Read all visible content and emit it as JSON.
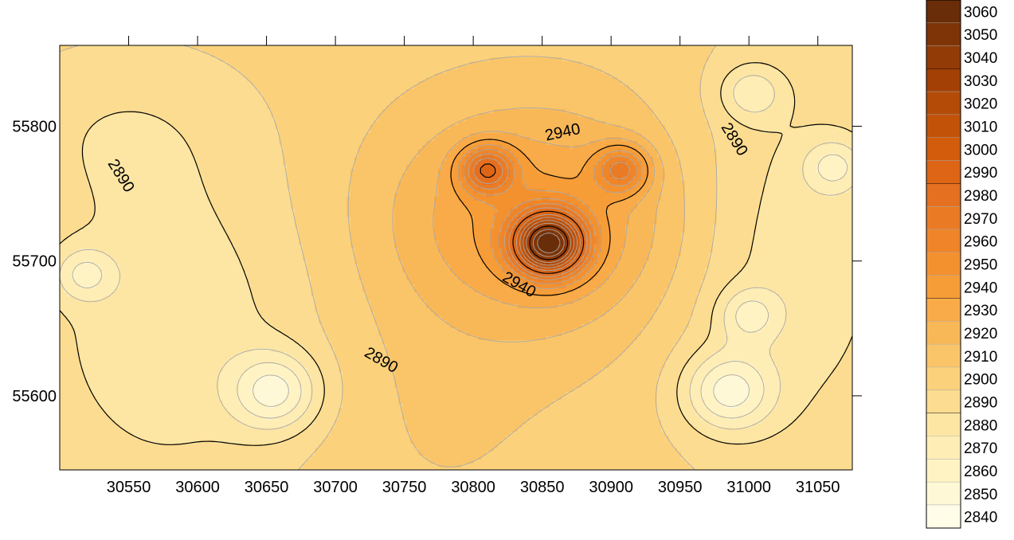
{
  "chart_data": {
    "type": "contour",
    "title": "",
    "xlabel": "",
    "ylabel": "",
    "xlim": [
      30500,
      31075
    ],
    "ylim": [
      55545,
      55860
    ],
    "x_ticks": [
      30550,
      30600,
      30650,
      30700,
      30750,
      30800,
      30850,
      30900,
      30950,
      31000,
      31050
    ],
    "y_ticks": [
      55600,
      55700,
      55800
    ],
    "grid": false,
    "contour_interval": 10,
    "highlighted_contours": [
      2890,
      2940,
      2990,
      3040
    ],
    "contour_labels": [
      {
        "value": 2940,
        "x": 30865,
        "y": 55795,
        "text": "2940"
      },
      {
        "value": 2940,
        "x": 30833,
        "y": 55682,
        "text": "2940"
      },
      {
        "value": 2890,
        "x": 30544,
        "y": 55763,
        "text": "2890"
      },
      {
        "value": 2890,
        "x": 30989,
        "y": 55790,
        "text": "2890"
      },
      {
        "value": 2890,
        "x": 30733,
        "y": 55626,
        "text": "2890"
      }
    ],
    "features": [
      {
        "kind": "peak",
        "x": 30855,
        "y": 55713,
        "value": 3060
      },
      {
        "kind": "peak",
        "x": 30810,
        "y": 55768,
        "value": 2990
      },
      {
        "kind": "peak",
        "x": 30908,
        "y": 55768,
        "value": 2980
      },
      {
        "kind": "depression",
        "x": 30656,
        "y": 55603,
        "value": 2845
      },
      {
        "kind": "depression",
        "x": 30985,
        "y": 55603,
        "value": 2845
      },
      {
        "kind": "depression",
        "x": 30518,
        "y": 55690,
        "value": 2860
      },
      {
        "kind": "depression",
        "x": 31062,
        "y": 55770,
        "value": 2860
      },
      {
        "kind": "depression",
        "x": 31002,
        "y": 55825,
        "value": 2860
      },
      {
        "kind": "depression",
        "x": 31000,
        "y": 55660,
        "value": 2860
      }
    ],
    "legend": {
      "position": "right",
      "levels": [
        3060,
        3050,
        3040,
        3030,
        3020,
        3010,
        3000,
        2990,
        2980,
        2970,
        2960,
        2950,
        2940,
        2930,
        2920,
        2910,
        2900,
        2890,
        2880,
        2870,
        2860,
        2850,
        2840
      ],
      "colors": [
        "#692d09",
        "#7f3408",
        "#923b06",
        "#a24005",
        "#b44b07",
        "#c35209",
        "#d25c0b",
        "#dd6515",
        "#e47020",
        "#ea7b24",
        "#ef8528",
        "#f4912f",
        "#f69d38",
        "#f8ab48",
        "#f9b858",
        "#fac568",
        "#fbd17c",
        "#fcdc90",
        "#fde6a4",
        "#feedb5",
        "#fff3c4",
        "#fff8d6",
        "#fffce8"
      ]
    }
  }
}
